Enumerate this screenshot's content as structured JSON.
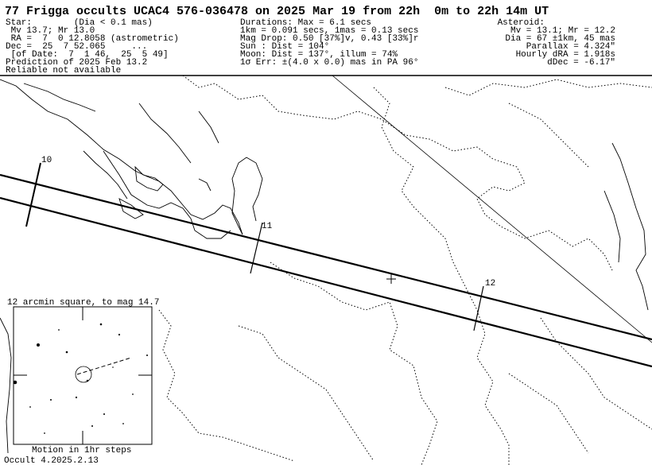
{
  "header": {
    "title": "77 Frigga occults UCAC4 576-036478 on 2025 Mar 19 from 22h  0m to 22h 14m UT",
    "star_lines": [
      "Star:        (Dia < 0.1 mas)",
      " Mv 13.7; Mr 13.0",
      " RA =  7  0 12.8058 (astrometric)",
      "Dec =  25  7 52.065     ...",
      " [of Date:  7  1 46,  25  5 49]",
      "Prediction of 2025 Feb 13.2",
      "Reliable not available"
    ],
    "event_lines": [
      "Durations: Max = 6.1 secs",
      "1km = 0.091 secs, 1mas = 0.13 secs",
      "Mag Drop: 0.50 [37%]v, 0.43 [33%]r",
      "Sun : Dist = 104°",
      "Moon: Dist = 137°, illum = 74%",
      "1σ Err: ±(4.0 x 0.0) mas in PA 96°"
    ],
    "asteroid_lines": [
      "Asteroid:",
      "Mv = 13.1; Mr = 12.2",
      "Dia = 67 ±1km, 45 mas",
      "Parallax = 4.324\"",
      "Hourly dRA = 1.918s",
      "dDec = -6.17\""
    ]
  },
  "map": {
    "time_labels": [
      "10",
      "11",
      "12"
    ]
  },
  "inset": {
    "caption": "12 arcmin square, to mag 14.7",
    "motion_label": "Motion in 1hr steps"
  },
  "footer": {
    "version": "Occult 4.2025.2.13"
  }
}
